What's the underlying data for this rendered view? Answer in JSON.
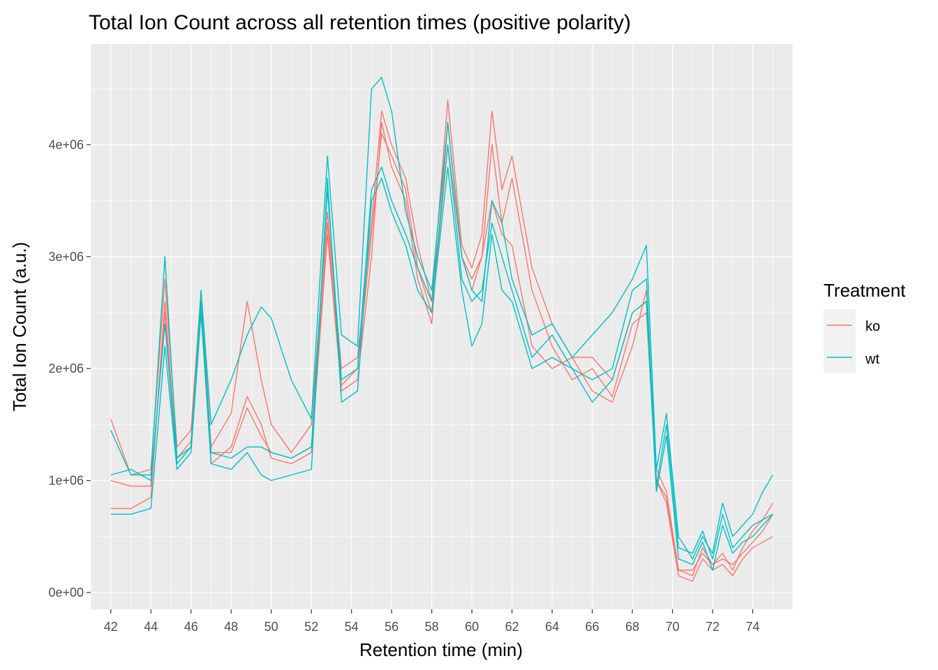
{
  "chart_data": {
    "type": "line",
    "title": "Total Ion Count across all retention times (positive polarity)",
    "xlabel": "Retention time (min)",
    "ylabel": "Total Ion Count (a.u.)",
    "xlim": [
      41,
      76
    ],
    "ylim": [
      -150000,
      4900000
    ],
    "x_ticks": [
      42,
      44,
      46,
      48,
      50,
      52,
      54,
      56,
      58,
      60,
      62,
      64,
      66,
      68,
      70,
      72,
      74
    ],
    "x_tick_labels": [
      "42",
      "44",
      "46",
      "48",
      "50",
      "52",
      "54",
      "56",
      "58",
      "60",
      "62",
      "64",
      "66",
      "68",
      "70",
      "72",
      "74"
    ],
    "y_ticks": [
      0,
      1000000,
      2000000,
      3000000,
      4000000
    ],
    "y_tick_labels": [
      "0e+00",
      "1e+06",
      "2e+06",
      "3e+06",
      "4e+06"
    ],
    "grid": true,
    "legend": {
      "title": "Treatment",
      "position": "right",
      "entries": [
        {
          "label": "ko",
          "color": "#F8766D"
        },
        {
          "label": "wt",
          "color": "#00BFC4"
        }
      ]
    },
    "x": [
      42,
      43,
      44,
      44.7,
      45.3,
      46,
      46.5,
      47,
      48,
      48.8,
      49.5,
      50,
      51,
      52,
      52.8,
      53.5,
      54.3,
      55,
      55.5,
      56,
      56.7,
      57.3,
      58,
      58.8,
      59.5,
      60,
      60.5,
      61,
      61.5,
      62,
      63,
      64,
      65,
      66,
      67,
      68,
      68.7,
      69.2,
      69.7,
      70.3,
      71,
      71.5,
      72,
      72.5,
      73,
      73.5,
      74,
      74.5,
      75
    ],
    "series": [
      {
        "name": "ko",
        "values": [
          1550000,
          1050000,
          1100000,
          2800000,
          1300000,
          1450000,
          2700000,
          1300000,
          1600000,
          2600000,
          1900000,
          1500000,
          1250000,
          1500000,
          3400000,
          2000000,
          2100000,
          3300000,
          4300000,
          4000000,
          3700000,
          3100000,
          2600000,
          4400000,
          3100000,
          2900000,
          3200000,
          4300000,
          3600000,
          3900000,
          2900000,
          2400000,
          2100000,
          2100000,
          1900000,
          2500000,
          2600000,
          1100000,
          900000,
          200000,
          150000,
          400000,
          250000,
          350000,
          200000,
          400000,
          550000,
          650000,
          800000
        ]
      },
      {
        "name": "ko",
        "values": [
          750000,
          750000,
          850000,
          2600000,
          1150000,
          1300000,
          2500000,
          1150000,
          1300000,
          1750000,
          1500000,
          1200000,
          1150000,
          1250000,
          3200000,
          1800000,
          1900000,
          3000000,
          4200000,
          3800000,
          3500000,
          2800000,
          2400000,
          4200000,
          3000000,
          2700000,
          3000000,
          4000000,
          3300000,
          3700000,
          2700000,
          2200000,
          1900000,
          2000000,
          1750000,
          2400000,
          2500000,
          1000000,
          800000,
          150000,
          100000,
          300000,
          200000,
          250000,
          150000,
          300000,
          400000,
          450000,
          500000
        ]
      },
      {
        "name": "ko",
        "values": [
          1000000,
          950000,
          950000,
          2500000,
          1200000,
          1350000,
          2600000,
          1250000,
          1250000,
          1650000,
          1400000,
          1250000,
          1200000,
          1300000,
          3300000,
          1850000,
          2000000,
          3200000,
          4100000,
          3900000,
          3600000,
          2900000,
          2500000,
          4000000,
          3000000,
          2800000,
          3000000,
          3500000,
          3200000,
          3100000,
          2200000,
          2000000,
          2100000,
          1800000,
          1700000,
          2200000,
          2700000,
          1000000,
          850000,
          200000,
          200000,
          350000,
          250000,
          300000,
          250000,
          350000,
          450000,
          550000,
          700000
        ]
      },
      {
        "name": "wt",
        "values": [
          1450000,
          1050000,
          1050000,
          3000000,
          1200000,
          1300000,
          2700000,
          1500000,
          1900000,
          2300000,
          2550000,
          2450000,
          1900000,
          1550000,
          3900000,
          2300000,
          2200000,
          4500000,
          4600000,
          4300000,
          3400000,
          3000000,
          2700000,
          4200000,
          3000000,
          2700000,
          2600000,
          3500000,
          3300000,
          2800000,
          2300000,
          2400000,
          2100000,
          2300000,
          2500000,
          2800000,
          3100000,
          1100000,
          1600000,
          500000,
          300000,
          500000,
          350000,
          800000,
          500000,
          600000,
          700000,
          900000,
          1050000
        ]
      },
      {
        "name": "wt",
        "values": [
          700000,
          700000,
          750000,
          2200000,
          1100000,
          1250000,
          2500000,
          1150000,
          1100000,
          1250000,
          1050000,
          1000000,
          1050000,
          1100000,
          3700000,
          1700000,
          1800000,
          3500000,
          3700000,
          3400000,
          3100000,
          2700000,
          2500000,
          3800000,
          2700000,
          2200000,
          2400000,
          3200000,
          2700000,
          2600000,
          2000000,
          2100000,
          2000000,
          1700000,
          1900000,
          2500000,
          2600000,
          900000,
          1400000,
          300000,
          250000,
          450000,
          200000,
          600000,
          350000,
          450000,
          500000,
          600000,
          700000
        ]
      },
      {
        "name": "wt",
        "values": [
          1050000,
          1100000,
          1000000,
          2400000,
          1150000,
          1300000,
          2600000,
          1250000,
          1200000,
          1300000,
          1300000,
          1250000,
          1200000,
          1300000,
          3600000,
          1900000,
          2000000,
          3600000,
          3800000,
          3500000,
          3200000,
          2900000,
          2600000,
          4000000,
          2800000,
          2600000,
          2700000,
          3300000,
          3000000,
          2700000,
          2100000,
          2300000,
          2000000,
          1900000,
          2000000,
          2700000,
          2800000,
          950000,
          1500000,
          400000,
          350000,
          550000,
          300000,
          700000,
          400000,
          500000,
          600000,
          650000,
          700000
        ]
      }
    ]
  }
}
